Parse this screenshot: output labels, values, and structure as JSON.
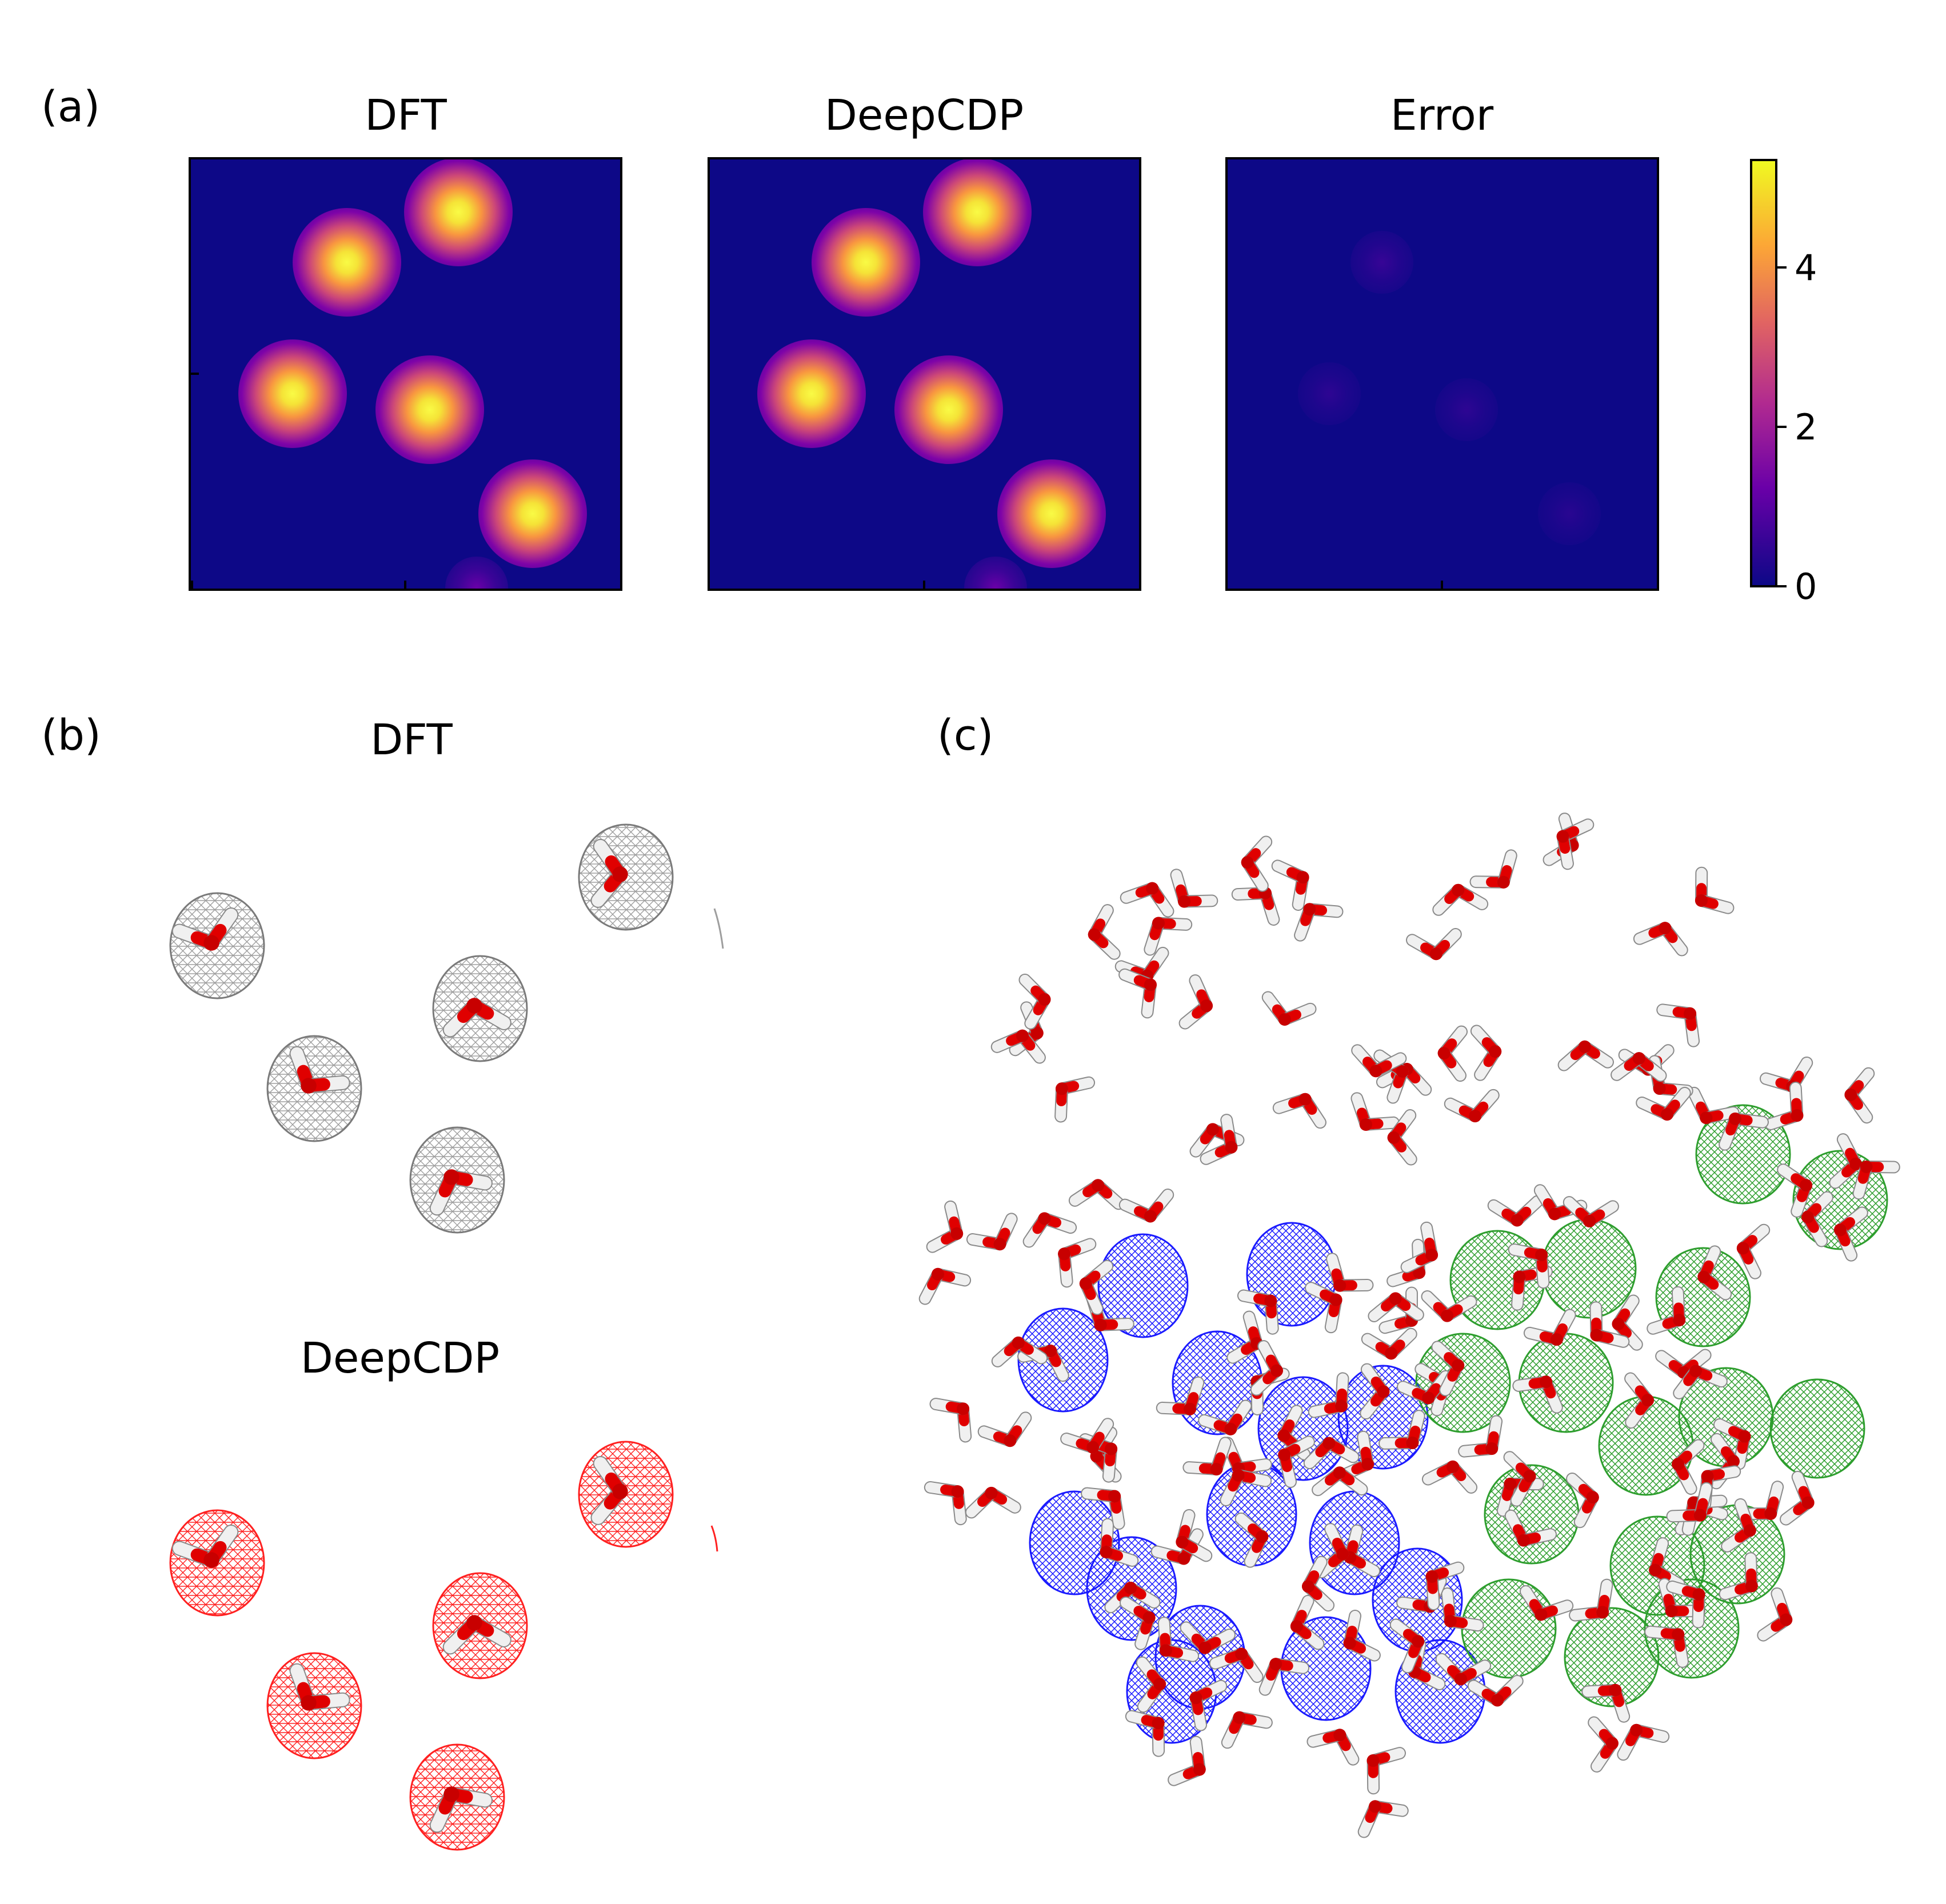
{
  "panel_a": {
    "label": "(a)",
    "titles": [
      "DFT",
      "DeepCDP",
      "Error"
    ],
    "colorbar": {
      "ticks": [
        "0",
        "2",
        "4"
      ],
      "min": 0,
      "max": 5.3,
      "colormap": "plasma"
    }
  },
  "panel_b": {
    "label": "(b)",
    "titles": [
      "DFT",
      "DeepCDP"
    ],
    "colors": {
      "dft_mesh": "#9e9e9e",
      "deepcdp_mesh": "#ff2020"
    }
  },
  "panel_c": {
    "label": "(c)",
    "colors": {
      "mesh_negative": "#1a1aff",
      "mesh_positive": "#2e9e2e",
      "oxygen": "#e00000",
      "hydrogen": "#f0f0f0"
    }
  }
}
